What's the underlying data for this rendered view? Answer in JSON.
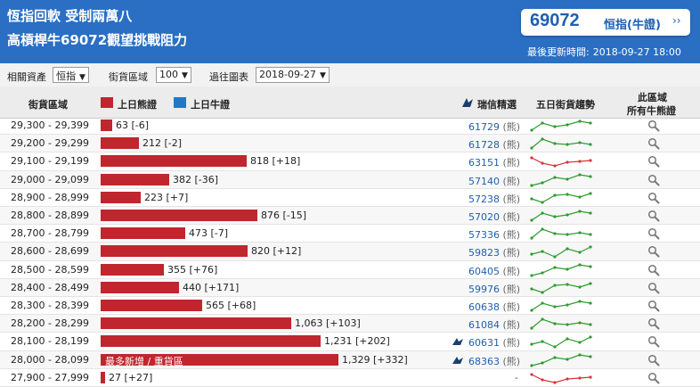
{
  "header": {
    "title_line1": "恆指回軟 受制兩萬八",
    "title_line2": "高槓桿牛69072觀望挑戰阻力",
    "price": "69072",
    "price_label": "恒指(牛證)",
    "price_chevron": "››",
    "updated_label": "最後更新時間:",
    "updated_time": "2018-09-27 18:00"
  },
  "filters": {
    "asset_label": "相關資產",
    "asset_value": "恒指",
    "range_label": "街貨區域",
    "range_value": "100",
    "chart_label": "過往圖表",
    "chart_value": "2018-09-27"
  },
  "columns": {
    "range": "街貨區域",
    "legend_bear": "上日熊證",
    "legend_bull": "上日牛證",
    "ubs": "瑞信精選",
    "trend": "五日街貨趨勢",
    "all_line1": "此區域",
    "all_line2": "所有牛熊證"
  },
  "colors": {
    "header_bg": "#2a6fc4",
    "bear_bar": "#c0262d",
    "bull_bar": "#1f78c8",
    "trend_up": "#2e9c2e",
    "trend_down": "#d9343a"
  },
  "bar_note": "最多新增 / 重貨區",
  "rows": [
    {
      "range": "29,300 - 29,399",
      "value": 63,
      "value_text": "63 [-6]",
      "warrant": "61729",
      "type": "(熊)",
      "icon": false,
      "trend": "up"
    },
    {
      "range": "29,200 - 29,299",
      "value": 212,
      "value_text": "212 [-2]",
      "warrant": "61728",
      "type": "(熊)",
      "icon": false,
      "trend": "up"
    },
    {
      "range": "29,100 - 29,199",
      "value": 818,
      "value_text": "818 [+18]",
      "warrant": "63151",
      "type": "(熊)",
      "icon": false,
      "trend": "down"
    },
    {
      "range": "29,000 - 29,099",
      "value": 382,
      "value_text": "382 [-36]",
      "warrant": "57140",
      "type": "(熊)",
      "icon": false,
      "trend": "up"
    },
    {
      "range": "28,900 - 28,999",
      "value": 223,
      "value_text": "223 [+7]",
      "warrant": "57238",
      "type": "(熊)",
      "icon": false,
      "trend": "up"
    },
    {
      "range": "28,800 - 28,899",
      "value": 876,
      "value_text": "876 [-15]",
      "warrant": "57020",
      "type": "(熊)",
      "icon": false,
      "trend": "up"
    },
    {
      "range": "28,700 - 28,799",
      "value": 473,
      "value_text": "473 [-7]",
      "warrant": "57336",
      "type": "(熊)",
      "icon": false,
      "trend": "up"
    },
    {
      "range": "28,600 - 28,699",
      "value": 820,
      "value_text": "820 [+12]",
      "warrant": "59823",
      "type": "(熊)",
      "icon": false,
      "trend": "up"
    },
    {
      "range": "28,500 - 28,599",
      "value": 355,
      "value_text": "355 [+76]",
      "warrant": "60405",
      "type": "(熊)",
      "icon": false,
      "trend": "up"
    },
    {
      "range": "28,400 - 28,499",
      "value": 440,
      "value_text": "440 [+171]",
      "warrant": "59976",
      "type": "(熊)",
      "icon": false,
      "trend": "up"
    },
    {
      "range": "28,300 - 28,399",
      "value": 565,
      "value_text": "565 [+68]",
      "warrant": "60638",
      "type": "(熊)",
      "icon": false,
      "trend": "up"
    },
    {
      "range": "28,200 - 28,299",
      "value": 1063,
      "value_text": "1,063 [+103]",
      "warrant": "61084",
      "type": "(熊)",
      "icon": false,
      "trend": "up"
    },
    {
      "range": "28,100 - 28,199",
      "value": 1231,
      "value_text": "1,231 [+202]",
      "warrant": "60631",
      "type": "(熊)",
      "icon": true,
      "trend": "up"
    },
    {
      "range": "28,000 - 28,099",
      "value": 1329,
      "value_text": "1,329 [+332]",
      "warrant": "68363",
      "type": "(熊)",
      "icon": true,
      "trend": "up",
      "note": true
    },
    {
      "range": "27,900 - 27,999",
      "value": 27,
      "value_text": "27 [+27]",
      "warrant": "",
      "type": "",
      "empty_mark": "-",
      "icon": false,
      "trend": "down"
    }
  ]
}
